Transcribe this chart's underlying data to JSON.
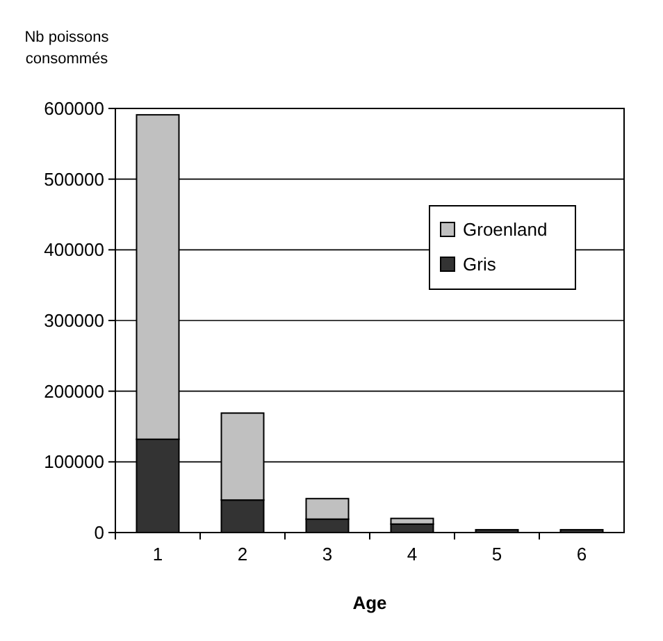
{
  "chart_data": {
    "type": "bar",
    "stacked": true,
    "xlabel": "Age",
    "ylabel": "Nb poissons consommés",
    "categories": [
      "1",
      "2",
      "3",
      "4",
      "5",
      "6"
    ],
    "series": [
      {
        "name": "Gris",
        "color": "#333333",
        "values": [
          132000,
          46000,
          19000,
          12000,
          4000,
          4000
        ]
      },
      {
        "name": "Groenland",
        "color": "#c0c0c0",
        "values": [
          459000,
          123000,
          29000,
          8000,
          null,
          null
        ]
      }
    ],
    "ylim": [
      0,
      600000
    ],
    "yticks": [
      0,
      100000,
      200000,
      300000,
      400000,
      500000,
      600000
    ],
    "grid": "y",
    "legend": "right"
  }
}
